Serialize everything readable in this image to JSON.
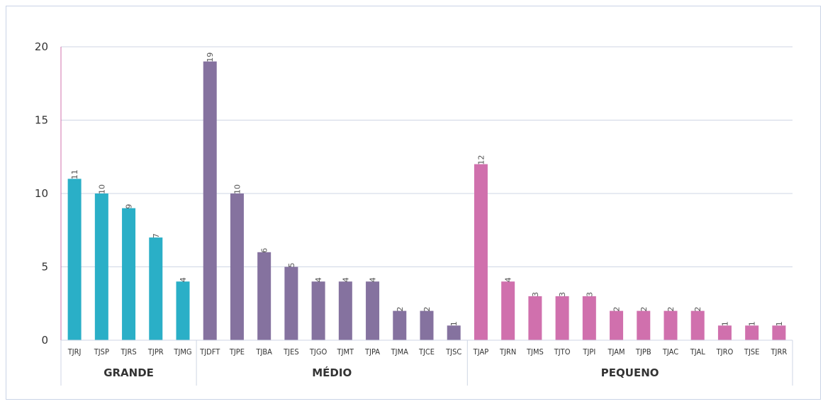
{
  "chart_data": {
    "type": "bar",
    "ylim": [
      0,
      20
    ],
    "yticks": [
      "0",
      "5",
      "10",
      "15",
      "20"
    ],
    "grid": true,
    "groups": [
      {
        "name": "GRANDE",
        "color": "#2aafc7",
        "categories": [
          "TJRJ",
          "TJSP",
          "TJRS",
          "TJPR",
          "TJMG"
        ],
        "values": [
          11,
          10,
          9,
          7,
          4
        ]
      },
      {
        "name": "MÉDIO",
        "color": "#85729f",
        "categories": [
          "TJDFT",
          "TJPE",
          "TJBA",
          "TJES",
          "TJGO",
          "TJMT",
          "TJPA",
          "TJMA",
          "TJCE",
          "TJSC"
        ],
        "values": [
          19,
          10,
          6,
          5,
          4,
          4,
          4,
          2,
          2,
          1
        ]
      },
      {
        "name": "PEQUENO",
        "color": "#d070ad",
        "categories": [
          "TJAP",
          "TJRN",
          "TJMS",
          "TJTO",
          "TJPI",
          "TJAM",
          "TJPB",
          "TJAC",
          "TJAL",
          "TJRO",
          "TJSE",
          "TJRR"
        ],
        "values": [
          12,
          4,
          3,
          3,
          3,
          2,
          2,
          2,
          2,
          1,
          1,
          1
        ]
      }
    ]
  }
}
